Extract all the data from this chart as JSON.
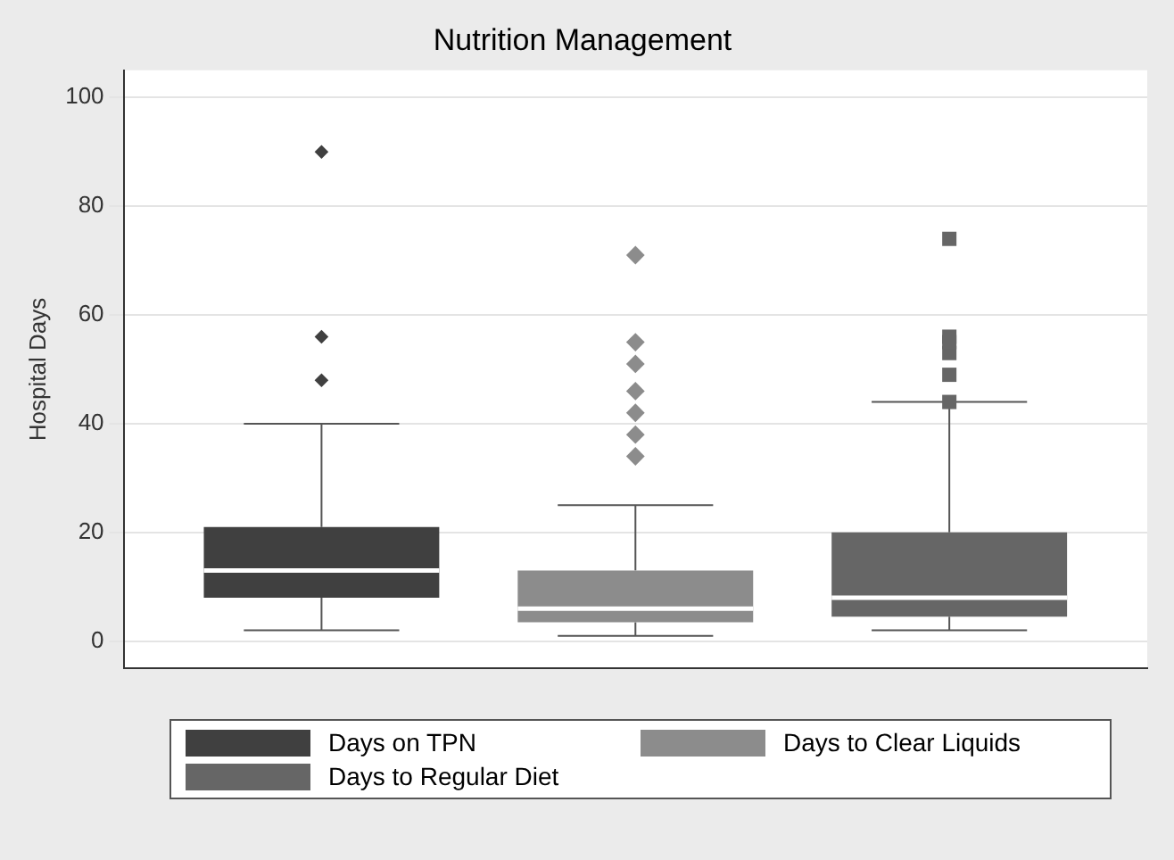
{
  "chart_data": {
    "type": "box",
    "title": "Nutrition Management",
    "ylabel": "Hospital Days",
    "categories": [
      null
    ],
    "ylim": [
      -5,
      105
    ],
    "yticks": [
      0,
      20,
      40,
      60,
      80,
      100
    ],
    "grid": "y",
    "legend": "bottom",
    "series": [
      {
        "name": "Days on TPN",
        "color": "#404040",
        "marker": "diamond",
        "boxes": [
          {
            "low": 2,
            "q1": 8,
            "median": 13,
            "q3": 21,
            "high": 40,
            "outliers": [
              48,
              56,
              90
            ]
          }
        ]
      },
      {
        "name": "Days to Clear Liquids",
        "color": "#8c8c8c",
        "marker": "diamond",
        "boxes": [
          {
            "low": 1,
            "q1": 3.5,
            "median": 6,
            "q3": 13,
            "high": 25,
            "outliers": [
              34,
              38,
              42,
              46,
              51,
              55,
              71
            ]
          }
        ]
      },
      {
        "name": "Days to Regular Diet",
        "color": "#666666",
        "marker": "square",
        "boxes": [
          {
            "low": 2,
            "q1": 4.5,
            "median": 8,
            "q3": 20,
            "high": 44,
            "outliers": [
              44,
              49,
              53,
              55,
              56,
              74
            ]
          }
        ]
      }
    ]
  }
}
